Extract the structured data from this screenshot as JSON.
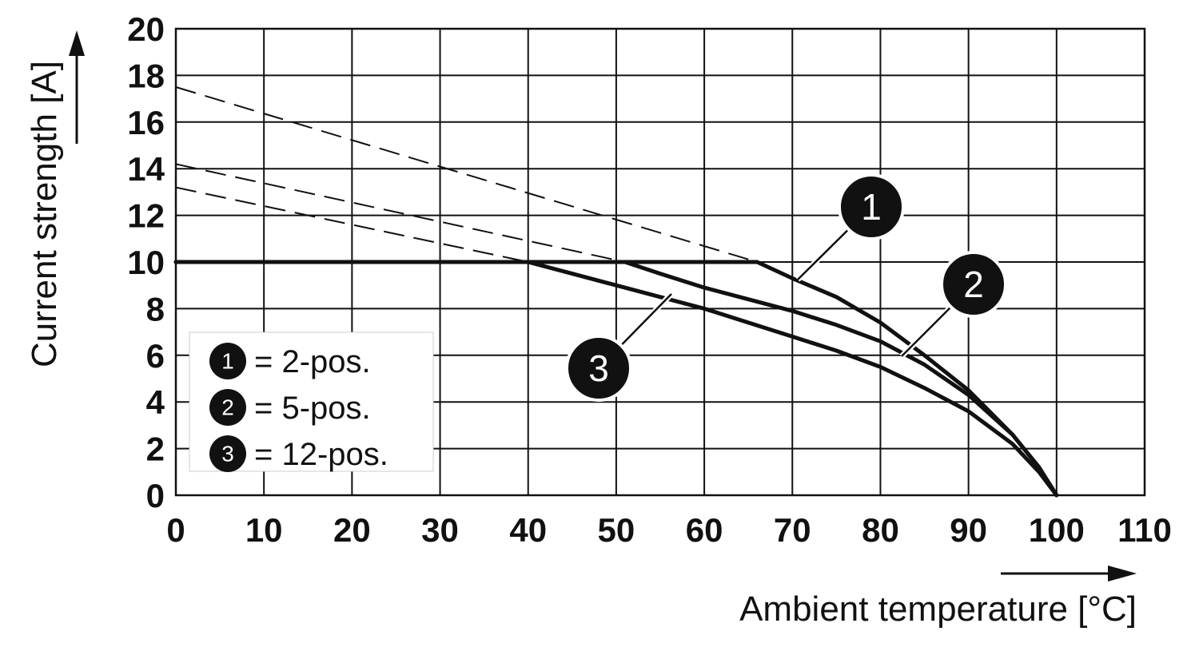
{
  "chart_data": {
    "type": "line",
    "xlabel": "Ambient temperature [°C]",
    "ylabel": "Current strength [A]",
    "xlim": [
      0,
      110
    ],
    "ylim": [
      0,
      20
    ],
    "x_ticks": [
      "0",
      "10",
      "20",
      "30",
      "40",
      "50",
      "60",
      "70",
      "80",
      "90",
      "100",
      "110"
    ],
    "y_ticks": [
      "0",
      "2",
      "4",
      "6",
      "8",
      "10",
      "12",
      "14",
      "16",
      "18",
      "20"
    ],
    "grid": true,
    "legend_position": "bottom-left",
    "series": [
      {
        "label": "1",
        "legend_text": "= 2-pos.",
        "solid": [
          [
            0,
            10
          ],
          [
            66,
            10
          ],
          [
            70,
            9.3
          ],
          [
            75,
            8.5
          ],
          [
            80,
            7.4
          ],
          [
            85,
            6.0
          ],
          [
            90,
            4.5
          ],
          [
            95,
            2.6
          ],
          [
            98,
            1.2
          ],
          [
            100,
            0
          ]
        ],
        "dashed": [
          [
            0,
            17.5
          ],
          [
            66,
            10
          ]
        ]
      },
      {
        "label": "2",
        "legend_text": "= 5-pos.",
        "solid": [
          [
            0,
            10
          ],
          [
            51,
            10
          ],
          [
            55,
            9.5
          ],
          [
            60,
            8.9
          ],
          [
            65,
            8.4
          ],
          [
            70,
            7.9
          ],
          [
            75,
            7.3
          ],
          [
            80,
            6.6
          ],
          [
            85,
            5.6
          ],
          [
            90,
            4.3
          ],
          [
            95,
            2.6
          ],
          [
            98,
            1.2
          ],
          [
            100,
            0
          ]
        ],
        "dashed": [
          [
            0,
            14.2
          ],
          [
            51,
            10
          ]
        ]
      },
      {
        "label": "3",
        "legend_text": "= 12-pos.",
        "solid": [
          [
            0,
            10
          ],
          [
            40,
            10
          ],
          [
            45,
            9.5
          ],
          [
            50,
            9.0
          ],
          [
            55,
            8.5
          ],
          [
            60,
            8.0
          ],
          [
            65,
            7.4
          ],
          [
            70,
            6.8
          ],
          [
            75,
            6.2
          ],
          [
            80,
            5.5
          ],
          [
            85,
            4.6
          ],
          [
            90,
            3.6
          ],
          [
            95,
            2.2
          ],
          [
            98,
            1.0
          ],
          [
            100,
            0
          ]
        ],
        "dashed": [
          [
            0,
            13.2
          ],
          [
            40,
            10
          ]
        ]
      }
    ]
  }
}
